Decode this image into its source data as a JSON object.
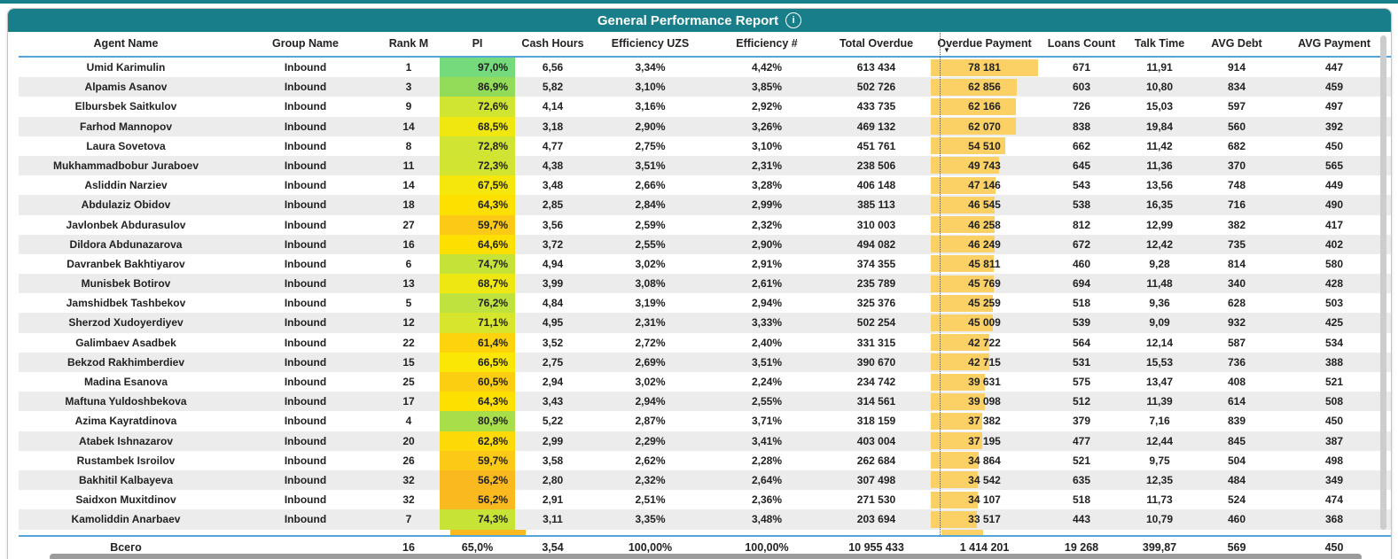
{
  "theme": {
    "teal": "#177E8A",
    "separator_blue": "#54A6DA",
    "row_alt_gray": "#ECECEC",
    "data_bar_amber": "#FBD065",
    "partial_row_pi_color": "#FBB920"
  },
  "title": {
    "text": "General Performance Report",
    "info_icon_glyph": "i"
  },
  "table": {
    "sort": {
      "column": "Overdue Payment",
      "direction": "descending",
      "icon": "▼"
    },
    "bar_max": 78181,
    "columns": [
      {
        "key": "agent-name",
        "label": "Agent Name"
      },
      {
        "key": "group-name",
        "label": "Group Name"
      },
      {
        "key": "rank-m",
        "label": "Rank M"
      },
      {
        "key": "pi",
        "label": "PI"
      },
      {
        "key": "cash-hours",
        "label": "Cash Hours"
      },
      {
        "key": "efficiency-uzs",
        "label": "Efficiency UZS"
      },
      {
        "key": "efficiency-num",
        "label": "Efficiency #"
      },
      {
        "key": "total-overdue",
        "label": "Total Overdue"
      },
      {
        "key": "overdue-payment",
        "label": "Overdue Payment"
      },
      {
        "key": "loans-count",
        "label": "Loans Count"
      },
      {
        "key": "talk-time",
        "label": "Talk Time"
      },
      {
        "key": "avg-debt",
        "label": "AVG Debt"
      },
      {
        "key": "avg-payment",
        "label": "AVG Payment"
      }
    ],
    "rows": [
      {
        "pi_color": "#74DA7B",
        "cells": [
          "Umid Karimulin",
          "Inbound",
          "1",
          "97,0%",
          "6,56",
          "3,34%",
          "4,42%",
          "613 434",
          "78 181",
          "671",
          "11,91",
          "914",
          "447"
        ]
      },
      {
        "pi_color": "#92DC59",
        "cells": [
          "Alpamis Asanov",
          "Inbound",
          "3",
          "86,9%",
          "5,82",
          "3,10%",
          "3,85%",
          "502 726",
          "62 856",
          "603",
          "10,80",
          "834",
          "459"
        ]
      },
      {
        "pi_color": "#D0E432",
        "cells": [
          "Elbursbek Saitkulov",
          "Inbound",
          "9",
          "72,6%",
          "4,14",
          "3,16%",
          "2,92%",
          "433 735",
          "62 166",
          "726",
          "15,03",
          "597",
          "497"
        ]
      },
      {
        "pi_color": "#EFE70F",
        "cells": [
          "Farhod Mannopov",
          "Inbound",
          "14",
          "68,5%",
          "3,18",
          "2,90%",
          "3,26%",
          "469 132",
          "62 070",
          "838",
          "19,84",
          "560",
          "392"
        ]
      },
      {
        "pi_color": "#CFE433",
        "cells": [
          "Laura Sovetova",
          "Inbound",
          "8",
          "72,8%",
          "4,77",
          "2,75%",
          "3,10%",
          "451 761",
          "54 510",
          "662",
          "11,42",
          "682",
          "450"
        ]
      },
      {
        "pi_color": "#D1E431",
        "cells": [
          "Mukhammadbobur Juraboev",
          "Inbound",
          "11",
          "72,3%",
          "4,38",
          "3,51%",
          "2,31%",
          "238 506",
          "49 743",
          "645",
          "11,36",
          "370",
          "565"
        ]
      },
      {
        "pi_color": "#F5E70B",
        "cells": [
          "Asliddin Narziev",
          "Inbound",
          "14",
          "67,5%",
          "3,48",
          "2,66%",
          "3,28%",
          "406 148",
          "47 146",
          "543",
          "13,56",
          "748",
          "449"
        ]
      },
      {
        "pi_color": "#FDDF00",
        "cells": [
          "Abdulaziz Obidov",
          "Inbound",
          "18",
          "64,3%",
          "2,85",
          "2,84%",
          "2,99%",
          "385 113",
          "46 545",
          "538",
          "16,35",
          "716",
          "490"
        ]
      },
      {
        "pi_color": "#FCCA16",
        "cells": [
          "Javlonbek Abdurasulov",
          "Inbound",
          "27",
          "59,7%",
          "3,56",
          "2,59%",
          "2,32%",
          "310 003",
          "46 258",
          "812",
          "12,99",
          "382",
          "417"
        ]
      },
      {
        "pi_color": "#FDE002",
        "cells": [
          "Dildora Abdunazarova",
          "Inbound",
          "16",
          "64,6%",
          "3,72",
          "2,55%",
          "2,90%",
          "494 082",
          "46 249",
          "672",
          "12,42",
          "735",
          "402"
        ]
      },
      {
        "pi_color": "#C5E239",
        "cells": [
          "Davranbek Bakhtiyarov",
          "Inbound",
          "6",
          "74,7%",
          "4,94",
          "3,02%",
          "2,91%",
          "374 355",
          "45 811",
          "460",
          "9,28",
          "814",
          "580"
        ]
      },
      {
        "pi_color": "#EEE711",
        "cells": [
          "Munisbek Botirov",
          "Inbound",
          "13",
          "68,7%",
          "3,99",
          "3,08%",
          "2,61%",
          "235 789",
          "45 769",
          "694",
          "11,48",
          "340",
          "428"
        ]
      },
      {
        "pi_color": "#BFE23E",
        "cells": [
          "Jamshidbek Tashbekov",
          "Inbound",
          "5",
          "76,2%",
          "4,84",
          "3,19%",
          "2,94%",
          "325 376",
          "45 259",
          "518",
          "9,36",
          "628",
          "503"
        ]
      },
      {
        "pi_color": "#D7E52D",
        "cells": [
          "Sherzod Xudoyerdiyev",
          "Inbound",
          "12",
          "71,1%",
          "4,95",
          "2,31%",
          "3,33%",
          "502 254",
          "45 009",
          "539",
          "9,09",
          "932",
          "425"
        ]
      },
      {
        "pi_color": "#FCD30D",
        "cells": [
          "Galimbaev Asadbek",
          "Inbound",
          "22",
          "61,4%",
          "3,52",
          "2,72%",
          "2,40%",
          "331 315",
          "42 722",
          "564",
          "12,14",
          "587",
          "534"
        ]
      },
      {
        "pi_color": "#FAE705",
        "cells": [
          "Bekzod Rakhimberdiev",
          "Inbound",
          "15",
          "66,5%",
          "2,75",
          "2,69%",
          "3,51%",
          "390 670",
          "42 715",
          "531",
          "15,53",
          "736",
          "388"
        ]
      },
      {
        "pi_color": "#FCCE12",
        "cells": [
          "Madina Esanova",
          "Inbound",
          "25",
          "60,5%",
          "2,94",
          "3,02%",
          "2,24%",
          "234 742",
          "39 631",
          "575",
          "13,47",
          "408",
          "521"
        ]
      },
      {
        "pi_color": "#FDDF00",
        "cells": [
          "Maftuna Yuldoshbekova",
          "Inbound",
          "17",
          "64,3%",
          "3,43",
          "2,94%",
          "2,55%",
          "314 561",
          "39 098",
          "512",
          "11,39",
          "614",
          "508"
        ]
      },
      {
        "pi_color": "#A9DE4B",
        "cells": [
          "Azima Kayratdinova",
          "Inbound",
          "4",
          "80,9%",
          "5,22",
          "2,87%",
          "3,71%",
          "318 159",
          "37 382",
          "379",
          "7,16",
          "839",
          "450"
        ]
      },
      {
        "pi_color": "#FDDA07",
        "cells": [
          "Atabek Ishnazarov",
          "Inbound",
          "20",
          "62,8%",
          "2,99",
          "2,29%",
          "3,41%",
          "403 004",
          "37 195",
          "477",
          "12,44",
          "845",
          "387"
        ]
      },
      {
        "pi_color": "#FCCA16",
        "cells": [
          "Rustambek Isroilov",
          "Inbound",
          "26",
          "59,7%",
          "3,58",
          "2,62%",
          "2,28%",
          "262 684",
          "34 864",
          "521",
          "9,75",
          "504",
          "498"
        ]
      },
      {
        "pi_color": "#FBB920",
        "cells": [
          "Bakhitil Kalbayeva",
          "Inbound",
          "32",
          "56,2%",
          "2,80",
          "2,32%",
          "2,64%",
          "307 498",
          "34 542",
          "635",
          "12,35",
          "484",
          "349"
        ]
      },
      {
        "pi_color": "#FBB920",
        "cells": [
          "Saidxon Muxitdinov",
          "Inbound",
          "32",
          "56,2%",
          "2,91",
          "2,51%",
          "2,36%",
          "271 530",
          "34 107",
          "518",
          "11,73",
          "524",
          "474"
        ]
      },
      {
        "pi_color": "#C7E336",
        "cells": [
          "Kamoliddin Anarbaev",
          "Inbound",
          "7",
          "74,3%",
          "3,11",
          "3,35%",
          "3,48%",
          "203 694",
          "33 517",
          "443",
          "10,79",
          "460",
          "368"
        ]
      }
    ],
    "total": {
      "cells": [
        "Всего",
        "",
        "16",
        "65,0%",
        "3,54",
        "100,00%",
        "100,00%",
        "10 955 433",
        "1 414 201",
        "19 268",
        "399,87",
        "569",
        "450"
      ]
    }
  }
}
